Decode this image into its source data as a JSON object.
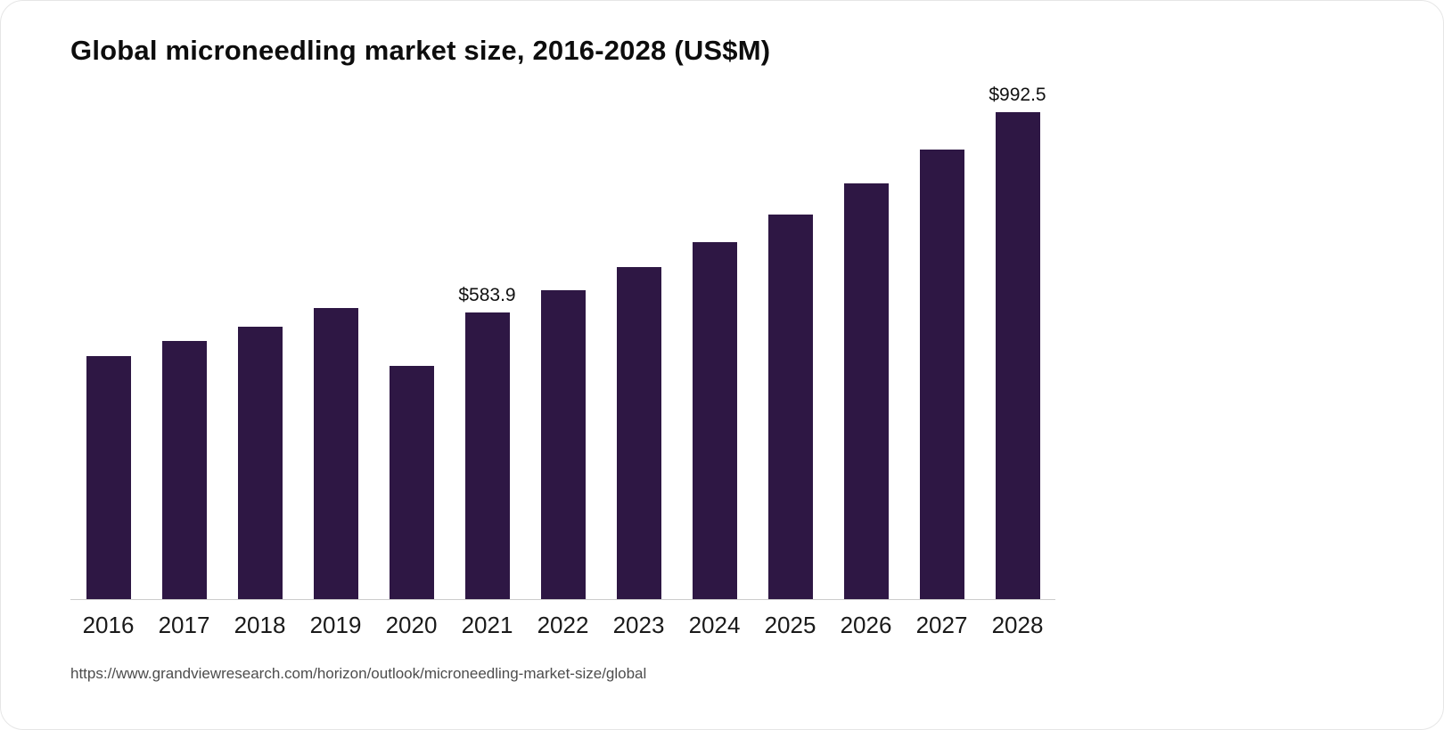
{
  "card": {
    "title": "Global microneedling market size, 2016-2028 (US$M)",
    "source": "https://www.grandviewresearch.com/horizon/outlook/microneedling-market-size/global"
  },
  "chart_data": {
    "type": "bar",
    "title": "Global microneedling market size, 2016-2028 (US$M)",
    "categories": [
      "2016",
      "2017",
      "2018",
      "2019",
      "2020",
      "2021",
      "2022",
      "2023",
      "2024",
      "2025",
      "2026",
      "2027",
      "2028"
    ],
    "values": [
      495,
      526,
      555,
      593,
      475,
      583.9,
      629,
      676,
      728,
      784,
      847,
      916,
      992.5
    ],
    "data_labels": {
      "2021": "$583.9",
      "2028": "$992.5"
    },
    "xlabel": "",
    "ylabel": "",
    "ylim": [
      0,
      1056
    ],
    "grid": false,
    "legend": "none",
    "y_axis_visible": false,
    "bar_color": "#2e1744",
    "axis_line_color": "#cccccc",
    "source": "https://www.grandviewresearch.com/horizon/outlook/microneedling-market-size/global"
  }
}
